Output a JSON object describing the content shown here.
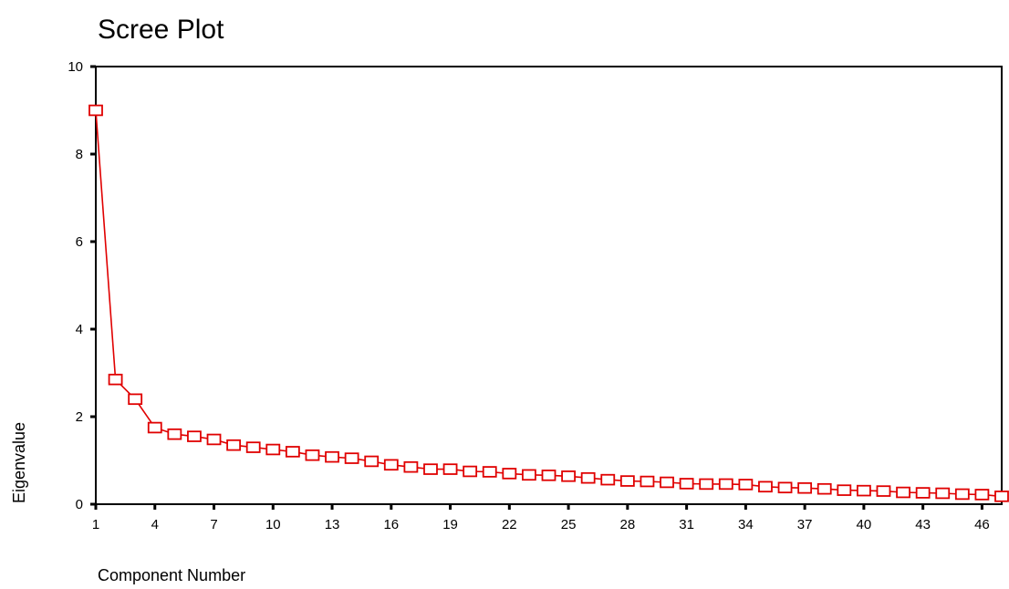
{
  "chart_data": {
    "type": "line",
    "title": "Scree Plot",
    "xlabel": "Component Number",
    "ylabel": "Eigenvalue",
    "xlim": [
      1,
      47
    ],
    "ylim": [
      0,
      10
    ],
    "x_tick_labels": [
      "1",
      "4",
      "7",
      "10",
      "13",
      "16",
      "19",
      "22",
      "25",
      "28",
      "31",
      "34",
      "37",
      "40",
      "43",
      "46"
    ],
    "y_tick_labels": [
      "0",
      "2",
      "4",
      "6",
      "8",
      "10"
    ],
    "marker": "square",
    "color": "#e00000",
    "series": [
      {
        "x": [
          1,
          2,
          3,
          4,
          5,
          6,
          7,
          8,
          9,
          10,
          11,
          12,
          13,
          14,
          15,
          16,
          17,
          18,
          19,
          20,
          21,
          22,
          23,
          24,
          25,
          26,
          27,
          28,
          29,
          30,
          31,
          32,
          33,
          34,
          35,
          36,
          37,
          38,
          39,
          40,
          41,
          42,
          43,
          44,
          45,
          46,
          47
        ],
        "values": [
          9.0,
          2.85,
          2.4,
          1.75,
          1.6,
          1.55,
          1.48,
          1.35,
          1.3,
          1.25,
          1.2,
          1.12,
          1.08,
          1.05,
          0.98,
          0.9,
          0.85,
          0.8,
          0.8,
          0.75,
          0.74,
          0.7,
          0.67,
          0.66,
          0.64,
          0.6,
          0.56,
          0.53,
          0.52,
          0.5,
          0.47,
          0.46,
          0.46,
          0.45,
          0.4,
          0.38,
          0.37,
          0.35,
          0.32,
          0.31,
          0.3,
          0.27,
          0.26,
          0.25,
          0.23,
          0.22,
          0.18
        ]
      }
    ]
  }
}
